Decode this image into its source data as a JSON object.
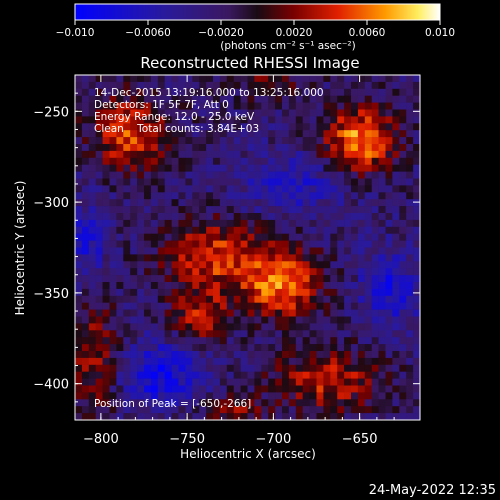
{
  "colorbar": {
    "ticks": [
      -0.01,
      -0.006,
      -0.002,
      0.002,
      0.006,
      0.01
    ],
    "tick_labels": [
      "−0.010",
      "−0.0060",
      "−0.0020",
      "0.0020",
      "0.0060",
      "0.010"
    ],
    "range": [
      -0.01,
      0.01
    ],
    "units_label": "(photons cm⁻² s⁻¹ asec⁻²)"
  },
  "chart_data": {
    "type": "heatmap",
    "title": "Reconstructed RHESSI Image",
    "xlabel": "Heliocentric X (arcsec)",
    "ylabel": "Heliocentric Y (arcsec)",
    "xlim": [
      -815,
      -615
    ],
    "ylim": [
      -420,
      -230
    ],
    "x_ticks": [
      -800,
      -750,
      -700,
      -650
    ],
    "x_tick_labels": [
      "−800",
      "−750",
      "−700",
      "−650"
    ],
    "y_ticks": [
      -250,
      -300,
      -350,
      -400
    ],
    "y_tick_labels": [
      "−250",
      "−300",
      "−350",
      "−400"
    ],
    "grid": false,
    "colormap": "blue-purple-red-yellow-white",
    "info_lines": [
      "14-Dec-2015 13:19:16.000 to 13:25:16.000",
      "Detectors: 1F 5F 7F, Att 0",
      "Energy Range: 12.0 - 25.0 keV",
      "Clean    Total counts: 3.84E+03"
    ],
    "peak_label": "Position of Peak = [-650,-266]",
    "peak_position": [
      -650,
      -266
    ],
    "sources": [
      {
        "x": -695,
        "y": -345,
        "sx": 16,
        "sy": 14,
        "amp": 0.0085
      },
      {
        "x": -735,
        "y": -330,
        "sx": 20,
        "sy": 14,
        "amp": 0.007
      },
      {
        "x": -742,
        "y": -363,
        "sx": 12,
        "sy": 9,
        "amp": 0.006
      },
      {
        "x": -650,
        "y": -266,
        "sx": 15,
        "sy": 13,
        "amp": 0.009
      },
      {
        "x": -783,
        "y": -262,
        "sx": 17,
        "sy": 15,
        "amp": 0.007
      },
      {
        "x": -668,
        "y": -398,
        "sx": 22,
        "sy": 12,
        "amp": 0.006
      },
      {
        "x": -804,
        "y": -385,
        "sx": 10,
        "sy": 22,
        "amp": 0.005
      },
      {
        "x": -725,
        "y": -415,
        "sx": 14,
        "sy": 6,
        "amp": 0.004
      },
      {
        "x": -705,
        "y": -232,
        "sx": 18,
        "sy": 8,
        "amp": 0.003
      },
      {
        "x": -765,
        "y": -395,
        "sx": 16,
        "sy": 12,
        "amp": -0.006
      },
      {
        "x": -632,
        "y": -348,
        "sx": 12,
        "sy": 14,
        "amp": -0.005
      },
      {
        "x": -808,
        "y": -322,
        "sx": 8,
        "sy": 16,
        "amp": -0.004
      },
      {
        "x": -688,
        "y": -290,
        "sx": 22,
        "sy": 12,
        "amp": -0.0035
      }
    ],
    "background_level": -0.0025
  },
  "timestamp": "24-May-2022 12:35"
}
